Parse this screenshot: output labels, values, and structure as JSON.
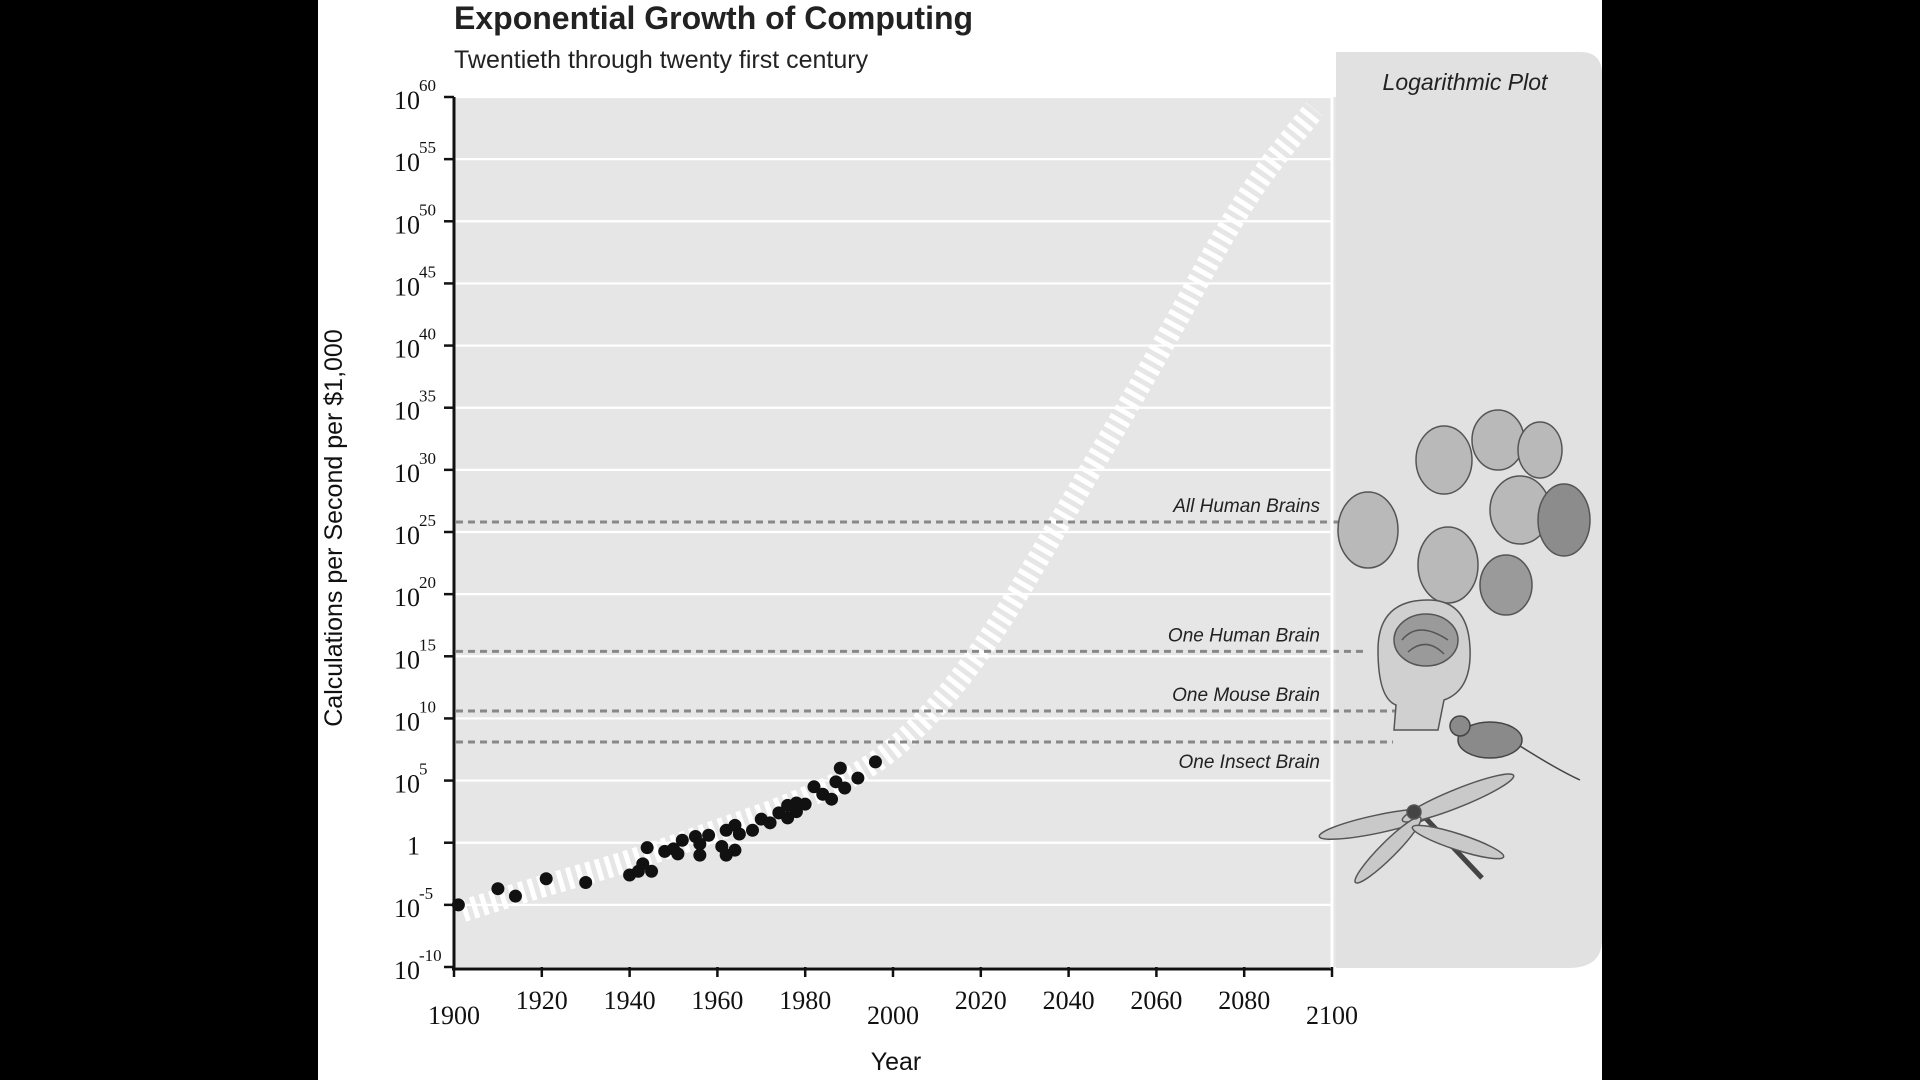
{
  "chart_data": {
    "type": "scatter",
    "title": "Exponential Growth of Computing",
    "subtitle": "Twentieth through twenty first century",
    "xlabel": "Year",
    "ylabel": "Calculations per Second per $1,000",
    "x_ticks": [
      "1900",
      "1920",
      "1940",
      "1960",
      "1980",
      "2000",
      "2020",
      "2040",
      "2060",
      "2080",
      "2100"
    ],
    "xlim": [
      1900,
      2100
    ],
    "y_scale": "log10",
    "ylim_exponent": [
      -10,
      60
    ],
    "y_ticks": [
      {
        "base": "10",
        "exp": "60",
        "value": 60
      },
      {
        "base": "10",
        "exp": "55",
        "value": 55
      },
      {
        "base": "10",
        "exp": "50",
        "value": 50
      },
      {
        "base": "10",
        "exp": "45",
        "value": 45
      },
      {
        "base": "10",
        "exp": "40",
        "value": 40
      },
      {
        "base": "10",
        "exp": "35",
        "value": 35
      },
      {
        "base": "10",
        "exp": "30",
        "value": 30
      },
      {
        "base": "10",
        "exp": "25",
        "value": 25
      },
      {
        "base": "10",
        "exp": "20",
        "value": 20
      },
      {
        "base": "10",
        "exp": "15",
        "value": 15
      },
      {
        "base": "10",
        "exp": "10",
        "value": 10
      },
      {
        "base": "10",
        "exp": "5",
        "value": 5
      },
      {
        "base": "1",
        "exp": "",
        "value": 0
      },
      {
        "base": "10",
        "exp": "-5",
        "value": -5
      },
      {
        "base": "10",
        "exp": "-10",
        "value": -10
      }
    ],
    "points": [
      {
        "year": 1901,
        "exp": -5.0
      },
      {
        "year": 1910,
        "exp": -3.7
      },
      {
        "year": 1914,
        "exp": -4.3
      },
      {
        "year": 1921,
        "exp": -2.9
      },
      {
        "year": 1930,
        "exp": -3.2
      },
      {
        "year": 1940,
        "exp": -2.6
      },
      {
        "year": 1942,
        "exp": -2.3
      },
      {
        "year": 1943,
        "exp": -1.7
      },
      {
        "year": 1944,
        "exp": -0.4
      },
      {
        "year": 1945,
        "exp": -2.3
      },
      {
        "year": 1948,
        "exp": -0.7
      },
      {
        "year": 1950,
        "exp": -0.5
      },
      {
        "year": 1951,
        "exp": -0.9
      },
      {
        "year": 1952,
        "exp": 0.2
      },
      {
        "year": 1955,
        "exp": 0.5
      },
      {
        "year": 1956,
        "exp": -0.1
      },
      {
        "year": 1956,
        "exp": -1.0
      },
      {
        "year": 1958,
        "exp": 0.6
      },
      {
        "year": 1961,
        "exp": -0.3
      },
      {
        "year": 1962,
        "exp": 1.0
      },
      {
        "year": 1962,
        "exp": -1.0
      },
      {
        "year": 1964,
        "exp": 1.4
      },
      {
        "year": 1964,
        "exp": -0.6
      },
      {
        "year": 1965,
        "exp": 0.7
      },
      {
        "year": 1968,
        "exp": 1.0
      },
      {
        "year": 1970,
        "exp": 1.9
      },
      {
        "year": 1972,
        "exp": 1.6
      },
      {
        "year": 1974,
        "exp": 2.4
      },
      {
        "year": 1976,
        "exp": 2.0
      },
      {
        "year": 1976,
        "exp": 3.0
      },
      {
        "year": 1978,
        "exp": 3.2
      },
      {
        "year": 1978,
        "exp": 2.5
      },
      {
        "year": 1980,
        "exp": 3.1
      },
      {
        "year": 1982,
        "exp": 4.5
      },
      {
        "year": 1984,
        "exp": 3.9
      },
      {
        "year": 1986,
        "exp": 3.5
      },
      {
        "year": 1987,
        "exp": 4.9
      },
      {
        "year": 1988,
        "exp": 6.0
      },
      {
        "year": 1989,
        "exp": 4.4
      },
      {
        "year": 1992,
        "exp": 5.2
      },
      {
        "year": 1996,
        "exp": 6.5
      }
    ],
    "trend": {
      "label": "projected trend (white dashed band)",
      "x": [
        1902,
        1920,
        1940,
        1960,
        1980,
        2000,
        2020,
        2040,
        2060,
        2080,
        2096
      ],
      "exp": [
        -5.5,
        -3.5,
        -1.5,
        1.0,
        3.5,
        7.0,
        15.0,
        27.0,
        39.0,
        52.0,
        59.0
      ]
    },
    "reference_lines": [
      {
        "label": "All Human Brains",
        "exp": 25.8
      },
      {
        "label": "One Human Brain",
        "exp": 15.4
      },
      {
        "label": "One Mouse Brain",
        "exp": 10.6
      },
      {
        "label": "One Insect Brain",
        "exp": 8.1
      }
    ],
    "panel_label": "Logarithmic Plot"
  },
  "colors": {
    "plot_bg": "#e6e6e6",
    "panel_bg": "#e0e0e0",
    "gridline": "#ffffff",
    "point": "#111111",
    "refline": "#888888"
  },
  "icons": [
    "human-heads-icon",
    "brain-head-icon",
    "mouse-icon",
    "dragonfly-icon"
  ]
}
